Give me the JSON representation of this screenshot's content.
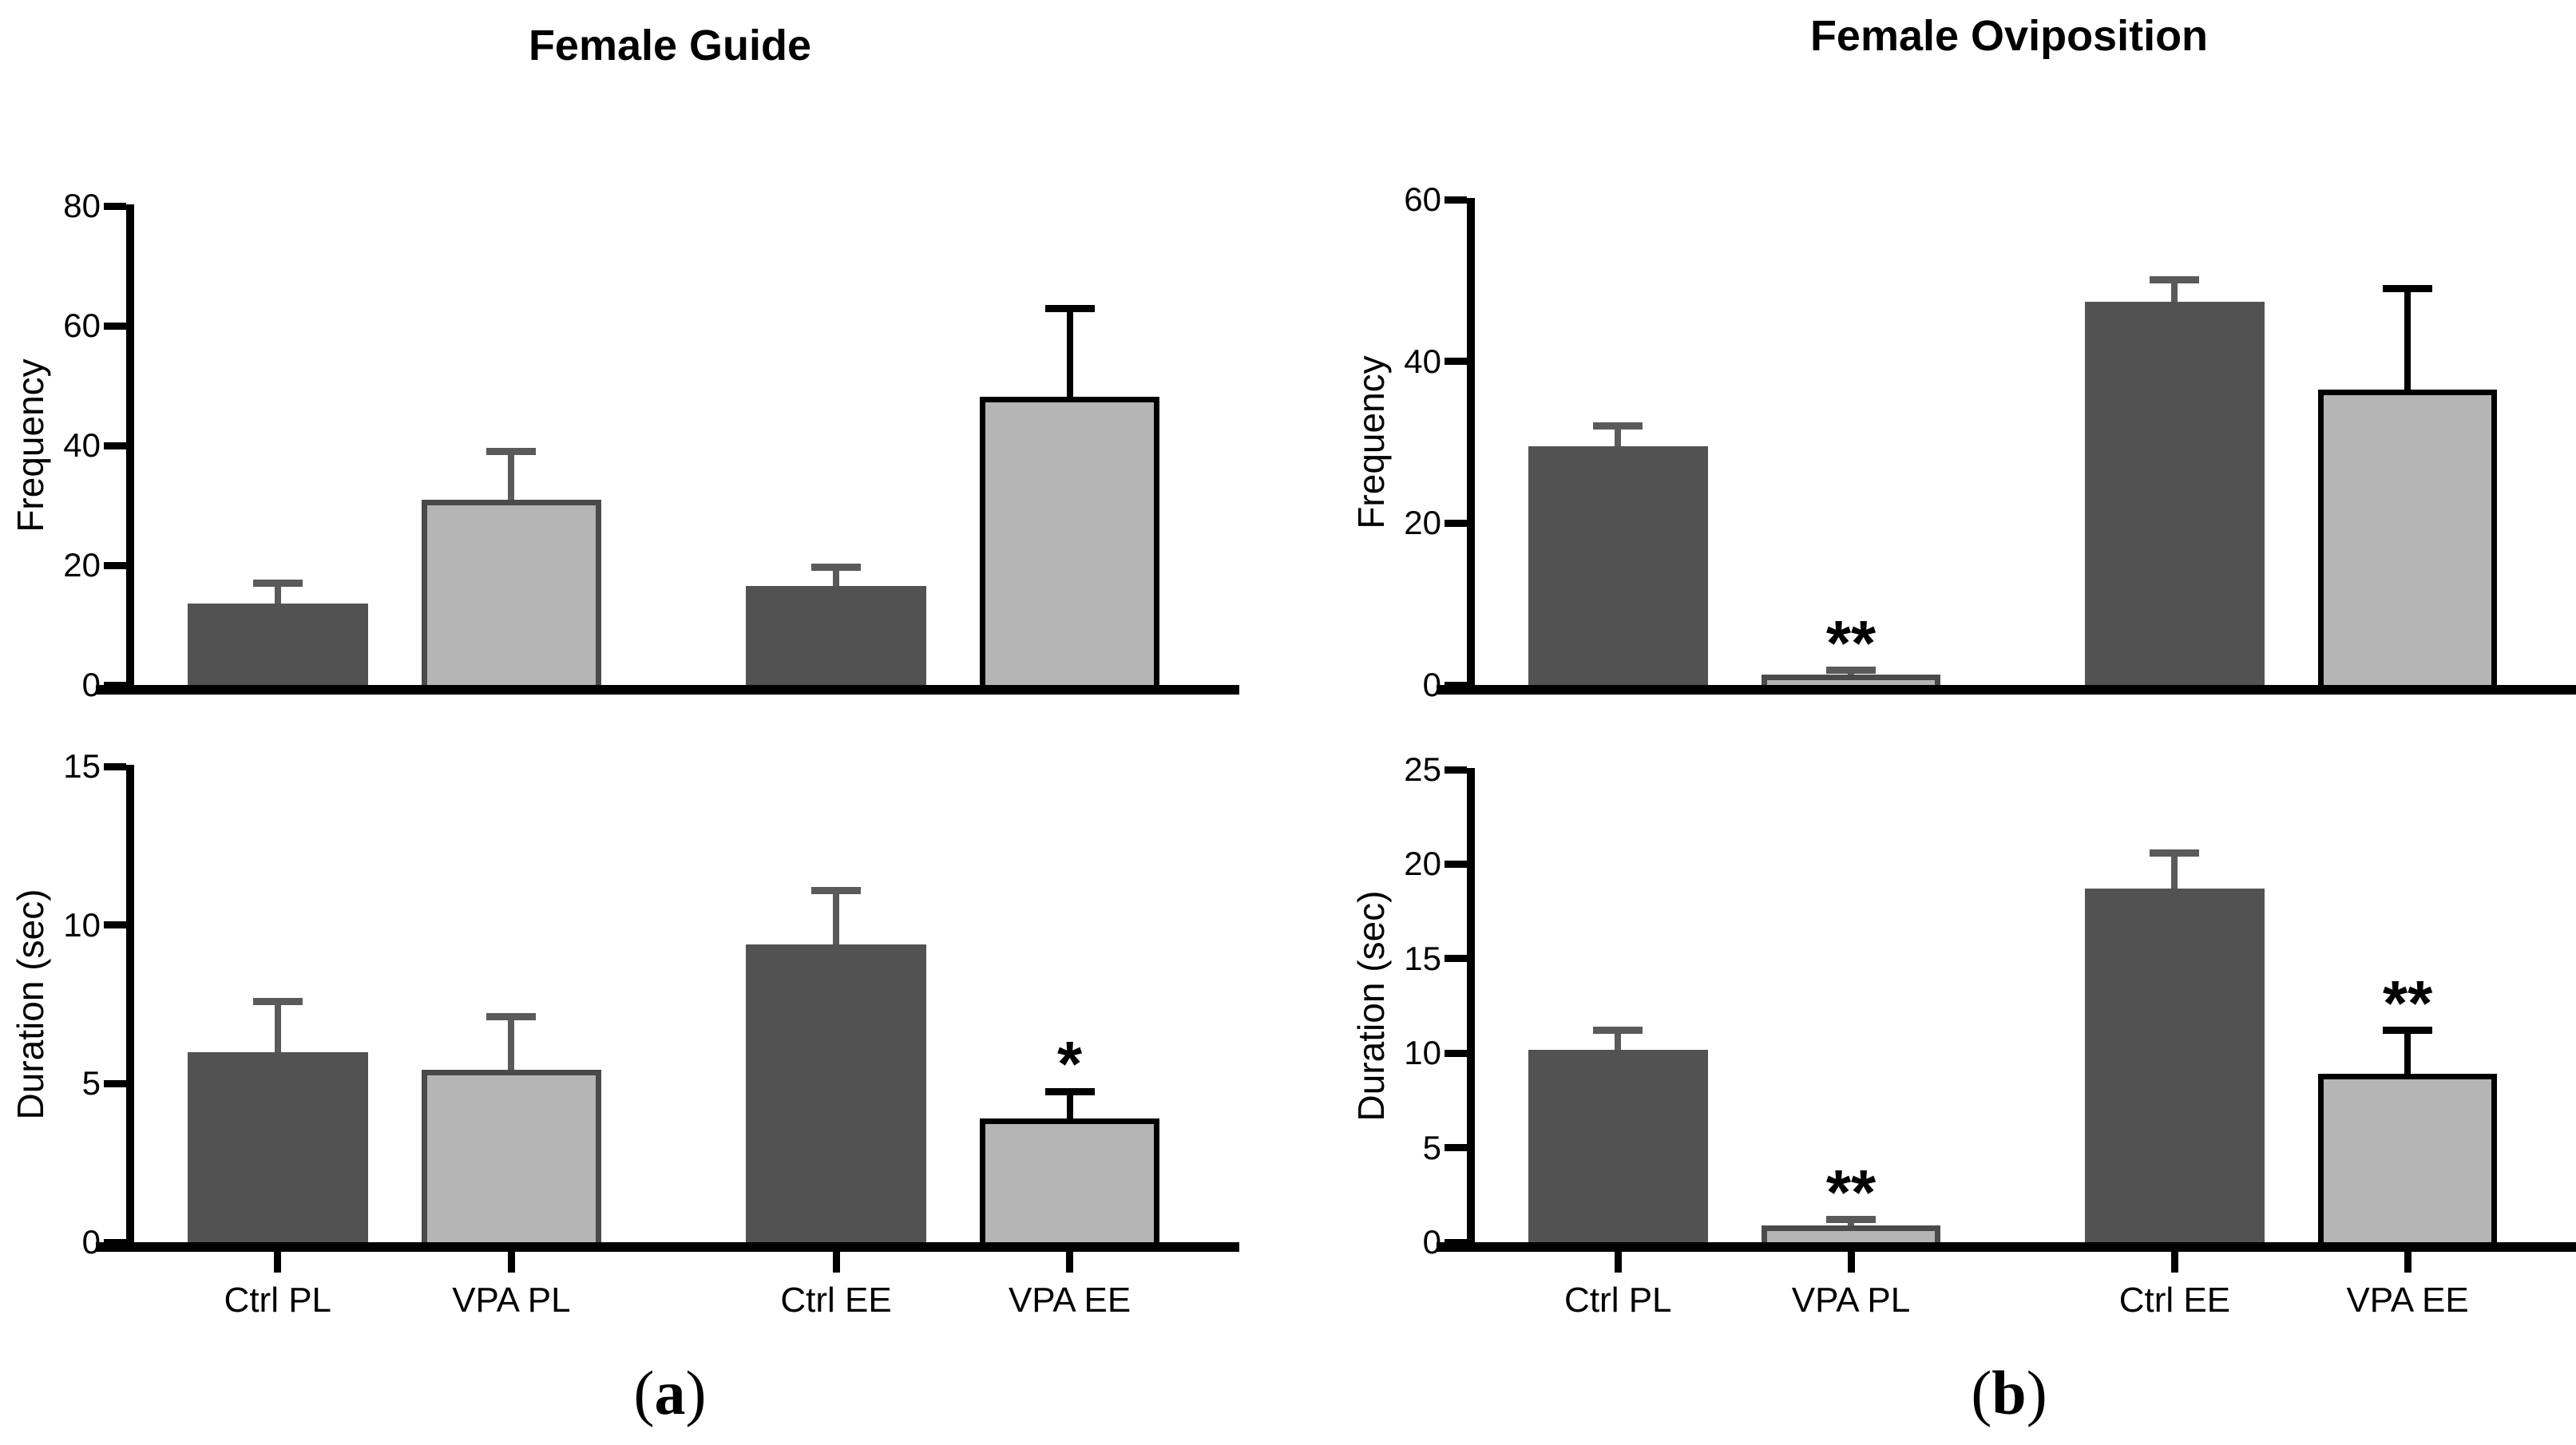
{
  "figure": {
    "captions": {
      "a": {
        "open": "(",
        "letter": "a",
        "close": ")"
      },
      "b": {
        "open": "(",
        "letter": "b",
        "close": ")"
      }
    }
  },
  "colors": {
    "background": "#ffffff",
    "axis": "#000000",
    "text": "#000000",
    "dark_fill": "#525252",
    "light_fill": "#b5b5b5",
    "light_border_gray": "#4a4a4a",
    "light_border_black": "#000000",
    "error_gray": "#5a5a5a",
    "error_black": "#000000"
  },
  "chart_data": [
    {
      "type": "bar",
      "panel": "a",
      "title": "Female Guide",
      "ylabel": "Frequency",
      "ylim": [
        0,
        80
      ],
      "yticks": [
        0,
        20,
        40,
        60,
        80
      ],
      "categories": [
        "Ctrl PL",
        "VPA PL",
        "Ctrl EE",
        "VPA EE"
      ],
      "values": [
        13.6,
        31.0,
        16.5,
        48.2
      ],
      "errors": [
        3.4,
        8.0,
        3.2,
        14.7
      ],
      "significance": [
        "",
        "",
        "",
        ""
      ],
      "bar_styles": [
        "dark",
        "light-gray",
        "dark",
        "light-black"
      ],
      "show_x_labels": false,
      "grid": false,
      "legend": "none"
    },
    {
      "type": "bar",
      "panel": "a",
      "title": "",
      "ylabel": "Duration (sec)",
      "ylim": [
        0,
        15
      ],
      "yticks": [
        0,
        5,
        10,
        15
      ],
      "categories": [
        "Ctrl PL",
        "VPA PL",
        "Ctrl EE",
        "VPA EE"
      ],
      "values": [
        6.0,
        5.45,
        9.4,
        3.9
      ],
      "errors": [
        1.6,
        1.65,
        1.7,
        0.85
      ],
      "significance": [
        "",
        "",
        "",
        "*"
      ],
      "bar_styles": [
        "dark",
        "light-gray",
        "dark",
        "light-black"
      ],
      "show_x_labels": true,
      "grid": false,
      "legend": "none"
    },
    {
      "type": "bar",
      "panel": "b",
      "title": "Female Oviposition",
      "ylabel": "Frequency",
      "ylim": [
        0,
        60
      ],
      "yticks": [
        0,
        20,
        40,
        60
      ],
      "categories": [
        "Ctrl PL",
        "VPA PL",
        "Ctrl EE",
        "VPA EE"
      ],
      "values": [
        29.5,
        1.3,
        47.4,
        36.5
      ],
      "errors": [
        2.5,
        0.5,
        2.7,
        12.5
      ],
      "significance": [
        "",
        "**",
        "",
        ""
      ],
      "bar_styles": [
        "dark",
        "light-gray",
        "dark",
        "light-black"
      ],
      "show_x_labels": false,
      "grid": false,
      "legend": "none"
    },
    {
      "type": "bar",
      "panel": "b",
      "title": "",
      "ylabel": "Duration (sec)",
      "ylim": [
        0,
        25
      ],
      "yticks": [
        0,
        5,
        10,
        15,
        20,
        25
      ],
      "categories": [
        "Ctrl PL",
        "VPA PL",
        "Ctrl EE",
        "VPA EE"
      ],
      "values": [
        10.2,
        0.9,
        18.7,
        8.9
      ],
      "errors": [
        1.0,
        0.3,
        1.9,
        2.3
      ],
      "significance": [
        "",
        "**",
        "",
        "**"
      ],
      "bar_styles": [
        "dark",
        "light-gray",
        "dark",
        "light-black"
      ],
      "show_x_labels": true,
      "grid": false,
      "legend": "none"
    }
  ]
}
